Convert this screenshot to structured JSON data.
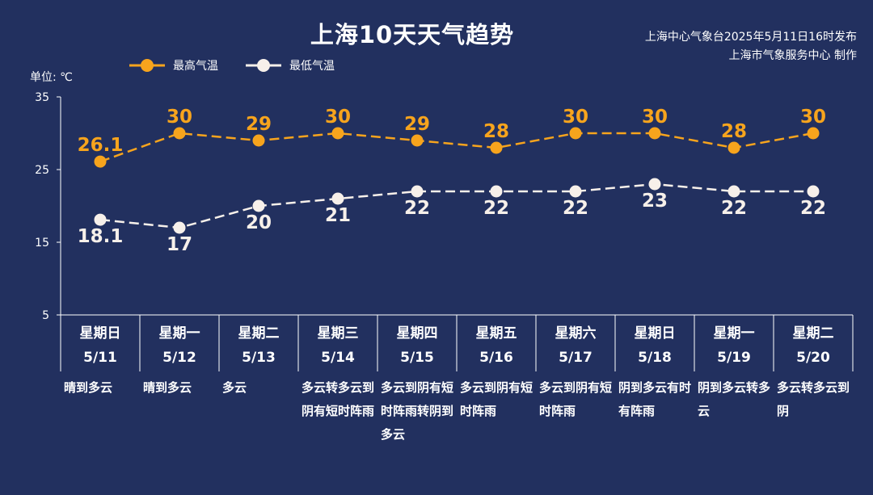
{
  "header": {
    "title": "上海10天天气趋势",
    "publisher_line1": "上海中心气象台2025年5月11日16时发布",
    "publisher_line2": "上海市气象服务中心 制作"
  },
  "legend": {
    "high_label": "最高气温",
    "low_label": "最低气温"
  },
  "unit_label": "单位: ℃",
  "colors": {
    "background": "#22305f",
    "high": "#f7a41d",
    "low": "#f7f0ea",
    "text": "#ffffff"
  },
  "days": [
    {
      "weekday": "星期日",
      "date": "5/11",
      "weather": "晴到多云"
    },
    {
      "weekday": "星期一",
      "date": "5/12",
      "weather": "晴到多云"
    },
    {
      "weekday": "星期二",
      "date": "5/13",
      "weather": "多云"
    },
    {
      "weekday": "星期三",
      "date": "5/14",
      "weather": "多云转多云到阴有短时阵雨"
    },
    {
      "weekday": "星期四",
      "date": "5/15",
      "weather": "多云到阴有短时阵雨转阴到多云"
    },
    {
      "weekday": "星期五",
      "date": "5/16",
      "weather": "多云到阴有短时阵雨"
    },
    {
      "weekday": "星期六",
      "date": "5/17",
      "weather": "多云到阴有短时阵雨"
    },
    {
      "weekday": "星期日",
      "date": "5/18",
      "weather": "阴到多云有时有阵雨"
    },
    {
      "weekday": "星期一",
      "date": "5/19",
      "weather": "阴到多云转多云"
    },
    {
      "weekday": "星期二",
      "date": "5/20",
      "weather": "多云转多云到阴"
    }
  ],
  "chart_data": {
    "type": "line",
    "categories": [
      "5/11",
      "5/12",
      "5/13",
      "5/14",
      "5/15",
      "5/16",
      "5/17",
      "5/18",
      "5/19",
      "5/20"
    ],
    "series": [
      {
        "name": "最高气温",
        "values": [
          26.1,
          30,
          29,
          30,
          29,
          28,
          30,
          30,
          28,
          30
        ],
        "labels": [
          "26.1",
          "30",
          "29",
          "30",
          "29",
          "28",
          "30",
          "30",
          "28",
          "30"
        ]
      },
      {
        "name": "最低气温",
        "values": [
          18.1,
          17,
          20,
          21,
          22,
          22,
          22,
          23,
          22,
          22
        ],
        "labels": [
          "18.1",
          "17",
          "20",
          "21",
          "22",
          "22",
          "22",
          "23",
          "22",
          "22"
        ]
      }
    ],
    "ylim": [
      5,
      35
    ],
    "yticks": [
      "5",
      "15",
      "25",
      "35"
    ],
    "ylabel": "单位: ℃",
    "grid": false,
    "legend_position": "top-left"
  }
}
